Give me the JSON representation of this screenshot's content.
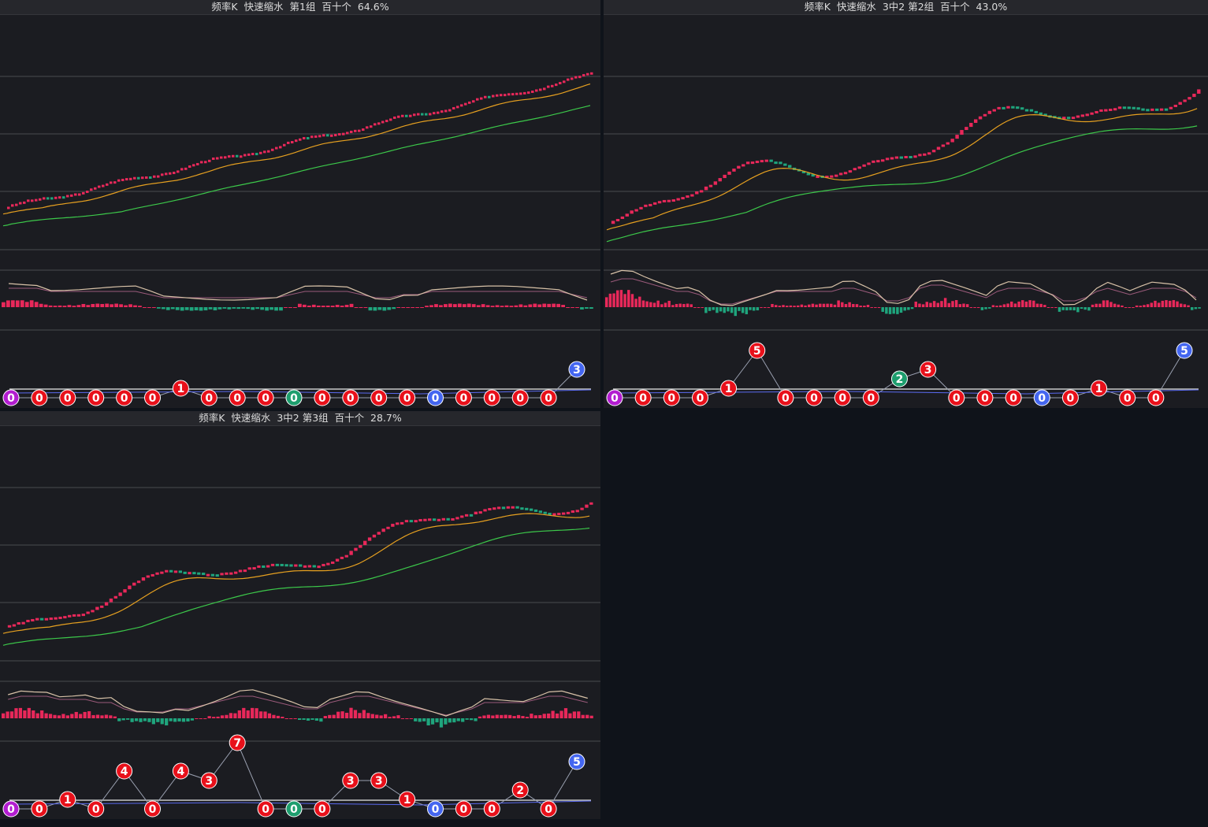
{
  "colors": {
    "up": "#e8285a",
    "down": "#1fa57d",
    "ma_short": "#e6a020",
    "ma_long": "#3cc84a",
    "dif": "#d8c2a8",
    "dea": "#9a5a7a",
    "grid": "#4a4b50",
    "badge_red": "#e8101a",
    "badge_green": "#1e9e6e",
    "badge_blue": "#4466f0",
    "badge_purple": "#b21cd0"
  },
  "panels": [
    {
      "title": "频率K  快速缩水  第1组  百十个  64.6%",
      "price": {
        "trend": "steady",
        "start": 0.07,
        "end": 0.97,
        "amp": 0.015,
        "n": 150,
        "seed": 3
      },
      "macd_hist": [
        2,
        2,
        2,
        1,
        1,
        1,
        1,
        1,
        1,
        1,
        0,
        -1,
        -1,
        -1,
        -1,
        -1,
        -1,
        -1,
        -1,
        -1,
        0,
        1,
        1,
        1,
        1,
        0,
        -1,
        -1,
        0,
        0,
        1,
        1,
        1,
        1,
        1,
        1,
        1,
        1,
        1,
        1,
        0,
        -1
      ],
      "badges": [
        {
          "v": "0",
          "c": "purple",
          "y": 0
        },
        {
          "v": "0",
          "c": "red",
          "y": 0
        },
        {
          "v": "0",
          "c": "red",
          "y": 0
        },
        {
          "v": "0",
          "c": "red",
          "y": 0
        },
        {
          "v": "0",
          "c": "red",
          "y": 0
        },
        {
          "v": "0",
          "c": "red",
          "y": 0
        },
        {
          "v": "1",
          "c": "red",
          "y": 1
        },
        {
          "v": "0",
          "c": "red",
          "y": 0
        },
        {
          "v": "0",
          "c": "red",
          "y": 0
        },
        {
          "v": "0",
          "c": "red",
          "y": 0
        },
        {
          "v": "0",
          "c": "green",
          "y": 0
        },
        {
          "v": "0",
          "c": "red",
          "y": 0
        },
        {
          "v": "0",
          "c": "red",
          "y": 0
        },
        {
          "v": "0",
          "c": "red",
          "y": 0
        },
        {
          "v": "0",
          "c": "red",
          "y": 0
        },
        {
          "v": "0",
          "c": "blue",
          "y": 0
        },
        {
          "v": "0",
          "c": "red",
          "y": 0
        },
        {
          "v": "0",
          "c": "red",
          "y": 0
        },
        {
          "v": "0",
          "c": "red",
          "y": 0
        },
        {
          "v": "0",
          "c": "red",
          "y": 0
        },
        {
          "v": "3",
          "c": "blue",
          "y": 3
        }
      ]
    },
    {
      "title": "频率K  快速缩水  3中2 第2组  百十个  43.0%",
      "price": {
        "trend": "wavy",
        "start": 0.05,
        "end": 0.9,
        "amp": 0.09,
        "n": 128,
        "seed": 11
      },
      "macd_hist": [
        4,
        5,
        5,
        4,
        3,
        2,
        1,
        1,
        0,
        -2,
        -3,
        -3,
        -2,
        -1,
        0,
        1,
        1,
        1,
        1,
        1,
        1,
        2,
        2,
        1,
        0,
        -2,
        -2,
        -1,
        2,
        3,
        3,
        2,
        1,
        0,
        -1,
        1,
        2,
        2,
        2,
        1,
        0,
        -2,
        -2,
        -1,
        1,
        2,
        1,
        0,
        1,
        2,
        2,
        2,
        1,
        -1
      ],
      "badges": [
        {
          "v": "0",
          "c": "purple",
          "y": 0
        },
        {
          "v": "0",
          "c": "red",
          "y": 0
        },
        {
          "v": "0",
          "c": "red",
          "y": 0
        },
        {
          "v": "0",
          "c": "red",
          "y": 0
        },
        {
          "v": "1",
          "c": "red",
          "y": 1
        },
        {
          "v": "5",
          "c": "red",
          "y": 5
        },
        {
          "v": "0",
          "c": "red",
          "y": 0
        },
        {
          "v": "0",
          "c": "red",
          "y": 0
        },
        {
          "v": "0",
          "c": "red",
          "y": 0
        },
        {
          "v": "0",
          "c": "red",
          "y": 0
        },
        {
          "v": "2",
          "c": "green",
          "y": 2
        },
        {
          "v": "3",
          "c": "red",
          "y": 3
        },
        {
          "v": "0",
          "c": "red",
          "y": 0
        },
        {
          "v": "0",
          "c": "red",
          "y": 0
        },
        {
          "v": "0",
          "c": "red",
          "y": 0
        },
        {
          "v": "0",
          "c": "blue",
          "y": 0
        },
        {
          "v": "0",
          "c": "red",
          "y": 0
        },
        {
          "v": "1",
          "c": "red",
          "y": 1
        },
        {
          "v": "0",
          "c": "red",
          "y": 0
        },
        {
          "v": "0",
          "c": "red",
          "y": 0
        },
        {
          "v": "5",
          "c": "blue",
          "y": 5
        }
      ]
    },
    {
      "title": "频率K  快速缩水  3中2 第3组  百十个  28.7%",
      "price": {
        "trend": "wavy",
        "start": 0.06,
        "end": 0.93,
        "amp": 0.07,
        "n": 128,
        "seed": 29
      },
      "macd_hist": [
        2,
        3,
        3,
        3,
        2,
        2,
        2,
        1,
        1,
        -1,
        -2,
        -2,
        -2,
        -1,
        -1,
        0,
        1,
        2,
        3,
        3,
        2,
        1,
        0,
        -1,
        -1,
        1,
        2,
        3,
        3,
        2,
        1,
        0,
        -1,
        -2,
        -3,
        -2,
        -1,
        1,
        1,
        1,
        1,
        2,
        3,
        3,
        2,
        1
      ],
      "badges": [
        {
          "v": "0",
          "c": "purple",
          "y": 0
        },
        {
          "v": "0",
          "c": "red",
          "y": 0
        },
        {
          "v": "1",
          "c": "red",
          "y": 1
        },
        {
          "v": "0",
          "c": "red",
          "y": 0
        },
        {
          "v": "4",
          "c": "red",
          "y": 4
        },
        {
          "v": "0",
          "c": "red",
          "y": 0
        },
        {
          "v": "4",
          "c": "red",
          "y": 4
        },
        {
          "v": "3",
          "c": "red",
          "y": 3
        },
        {
          "v": "7",
          "c": "red",
          "y": 7
        },
        {
          "v": "0",
          "c": "red",
          "y": 0
        },
        {
          "v": "0",
          "c": "green",
          "y": 0
        },
        {
          "v": "0",
          "c": "red",
          "y": 0
        },
        {
          "v": "3",
          "c": "red",
          "y": 3
        },
        {
          "v": "3",
          "c": "red",
          "y": 3
        },
        {
          "v": "1",
          "c": "red",
          "y": 1
        },
        {
          "v": "0",
          "c": "blue",
          "y": 0
        },
        {
          "v": "0",
          "c": "red",
          "y": 0
        },
        {
          "v": "0",
          "c": "red",
          "y": 0
        },
        {
          "v": "2",
          "c": "red",
          "y": 2
        },
        {
          "v": "0",
          "c": "red",
          "y": 0
        },
        {
          "v": "5",
          "c": "blue",
          "y": 5
        }
      ]
    }
  ]
}
